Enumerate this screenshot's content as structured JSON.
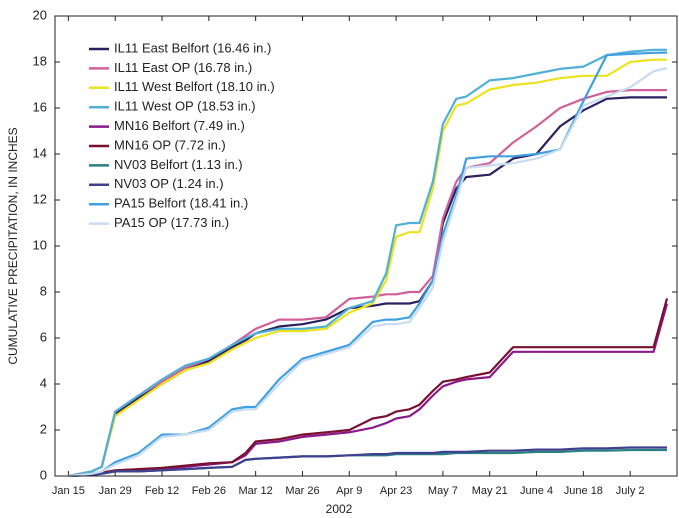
{
  "chart_data": {
    "type": "line",
    "x_label": "2002",
    "y_label": "CUMULATIVE PRECIPITATION, IN INCHES",
    "x": [
      15,
      22,
      25,
      29,
      36,
      43,
      50,
      57,
      64,
      68,
      71,
      78,
      85,
      92,
      99,
      106,
      110,
      113,
      117,
      120,
      124,
      127,
      131,
      134,
      141,
      148,
      155,
      162,
      169,
      176,
      183,
      190,
      194
    ],
    "xlim": [
      11,
      197
    ],
    "xticks": [
      {
        "value": 15,
        "label": "Jan 15"
      },
      {
        "value": 29,
        "label": "Jan 29"
      },
      {
        "value": 43,
        "label": "Feb 12"
      },
      {
        "value": 57,
        "label": "Feb 26"
      },
      {
        "value": 71,
        "label": "Mar 12"
      },
      {
        "value": 85,
        "label": "Mar 26"
      },
      {
        "value": 99,
        "label": "Apr 9"
      },
      {
        "value": 113,
        "label": "Apr 23"
      },
      {
        "value": 127,
        "label": "May 7"
      },
      {
        "value": 141,
        "label": "May 21"
      },
      {
        "value": 155,
        "label": "June 4"
      },
      {
        "value": 169,
        "label": "June 18"
      },
      {
        "value": 183,
        "label": "July 2"
      }
    ],
    "ylim": [
      0,
      20
    ],
    "yticks": [
      0,
      2,
      4,
      6,
      8,
      10,
      12,
      14,
      16,
      18,
      20
    ],
    "legend": "upper left",
    "series": [
      {
        "name": "IL11 East Belfort (16.46 in.)",
        "color": "#2a2060",
        "values": [
          0,
          0.2,
          0.4,
          2.7,
          3.4,
          4.0,
          4.6,
          5.0,
          5.6,
          5.9,
          6.2,
          6.5,
          6.6,
          6.8,
          7.3,
          7.4,
          7.5,
          7.5,
          7.5,
          7.6,
          8.5,
          11.0,
          12.5,
          13.0,
          13.1,
          13.8,
          14.0,
          15.2,
          15.9,
          16.4,
          16.46,
          16.46,
          16.46
        ]
      },
      {
        "name": "IL11 East OP (16.78 in.)",
        "color": "#d0609a",
        "values": [
          0,
          0.2,
          0.4,
          2.8,
          3.5,
          4.1,
          4.7,
          5.1,
          5.7,
          6.1,
          6.4,
          6.8,
          6.8,
          6.9,
          7.7,
          7.8,
          7.9,
          7.9,
          8.0,
          8.0,
          8.7,
          11.2,
          12.8,
          13.4,
          13.6,
          14.5,
          15.2,
          16.0,
          16.4,
          16.7,
          16.78,
          16.78,
          16.78
        ]
      },
      {
        "name": "IL11 West Belfort (18.10 in.)",
        "color": "#ece21e",
        "values": [
          0,
          0.2,
          0.4,
          2.6,
          3.3,
          4.0,
          4.6,
          4.9,
          5.5,
          5.8,
          6.0,
          6.3,
          6.3,
          6.4,
          7.1,
          7.5,
          8.5,
          10.4,
          10.6,
          10.6,
          12.5,
          15.0,
          16.1,
          16.2,
          16.8,
          17.0,
          17.1,
          17.3,
          17.4,
          17.4,
          18.0,
          18.1,
          18.1
        ]
      },
      {
        "name": "IL11 West OP (18.53 in.)",
        "color": "#50b0d8",
        "values": [
          0,
          0.2,
          0.4,
          2.8,
          3.5,
          4.2,
          4.8,
          5.1,
          5.7,
          6.0,
          6.2,
          6.4,
          6.4,
          6.5,
          7.3,
          7.6,
          8.8,
          10.9,
          11.0,
          11.0,
          12.8,
          15.3,
          16.4,
          16.5,
          17.2,
          17.3,
          17.5,
          17.7,
          17.8,
          18.3,
          18.45,
          18.53,
          18.53
        ]
      },
      {
        "name": "MN16 Belfort (7.49 in.)",
        "color": "#8a1a8a",
        "values": [
          0,
          0.1,
          0.15,
          0.2,
          0.25,
          0.3,
          0.4,
          0.5,
          0.6,
          0.9,
          1.4,
          1.5,
          1.7,
          1.8,
          1.9,
          2.1,
          2.3,
          2.5,
          2.6,
          2.9,
          3.5,
          3.9,
          4.1,
          4.2,
          4.3,
          5.4,
          5.4,
          5.4,
          5.4,
          5.4,
          5.4,
          5.4,
          7.49
        ]
      },
      {
        "name": "MN16 OP (7.72 in.)",
        "color": "#7a1030",
        "values": [
          0,
          0.1,
          0.15,
          0.25,
          0.3,
          0.35,
          0.45,
          0.55,
          0.6,
          1.0,
          1.5,
          1.6,
          1.8,
          1.9,
          2.0,
          2.5,
          2.6,
          2.8,
          2.9,
          3.1,
          3.7,
          4.1,
          4.2,
          4.3,
          4.5,
          5.6,
          5.6,
          5.6,
          5.6,
          5.6,
          5.6,
          5.6,
          7.72
        ]
      },
      {
        "name": "NV03 Belfort (1.13 in.)",
        "color": "#2a8080",
        "values": [
          0,
          0.05,
          0.1,
          0.2,
          0.2,
          0.25,
          0.3,
          0.35,
          0.4,
          0.7,
          0.75,
          0.8,
          0.85,
          0.85,
          0.9,
          0.9,
          0.9,
          0.95,
          0.95,
          0.95,
          0.95,
          0.95,
          1.0,
          1.0,
          1.0,
          1.0,
          1.05,
          1.05,
          1.1,
          1.1,
          1.13,
          1.13,
          1.13
        ]
      },
      {
        "name": "NV03 OP (1.24 in.)",
        "color": "#404090",
        "values": [
          0,
          0.05,
          0.1,
          0.2,
          0.2,
          0.25,
          0.3,
          0.35,
          0.4,
          0.7,
          0.75,
          0.8,
          0.85,
          0.85,
          0.9,
          0.95,
          0.95,
          1.0,
          1.0,
          1.0,
          1.0,
          1.05,
          1.05,
          1.05,
          1.1,
          1.1,
          1.15,
          1.15,
          1.2,
          1.2,
          1.24,
          1.24,
          1.24
        ]
      },
      {
        "name": "PA15 Belfort (18.41 in.)",
        "color": "#40a0e0",
        "values": [
          0,
          0.1,
          0.2,
          0.6,
          1.0,
          1.8,
          1.8,
          2.1,
          2.9,
          3.0,
          3.0,
          4.2,
          5.1,
          5.4,
          5.7,
          6.7,
          6.8,
          6.8,
          6.9,
          7.5,
          8.5,
          10.5,
          12.2,
          13.8,
          13.9,
          13.9,
          14.0,
          14.2,
          16.3,
          18.3,
          18.35,
          18.4,
          18.41
        ]
      },
      {
        "name": "PA15 OP (17.73 in.)",
        "color": "#c8dcf0",
        "values": [
          0,
          0.1,
          0.2,
          0.5,
          0.9,
          1.7,
          1.8,
          2.0,
          2.8,
          2.9,
          2.9,
          4.0,
          5.0,
          5.3,
          5.6,
          6.5,
          6.6,
          6.6,
          6.7,
          7.3,
          8.2,
          10.2,
          12.0,
          13.4,
          13.5,
          13.6,
          13.8,
          14.2,
          16.1,
          16.5,
          16.9,
          17.6,
          17.73
        ]
      }
    ]
  }
}
